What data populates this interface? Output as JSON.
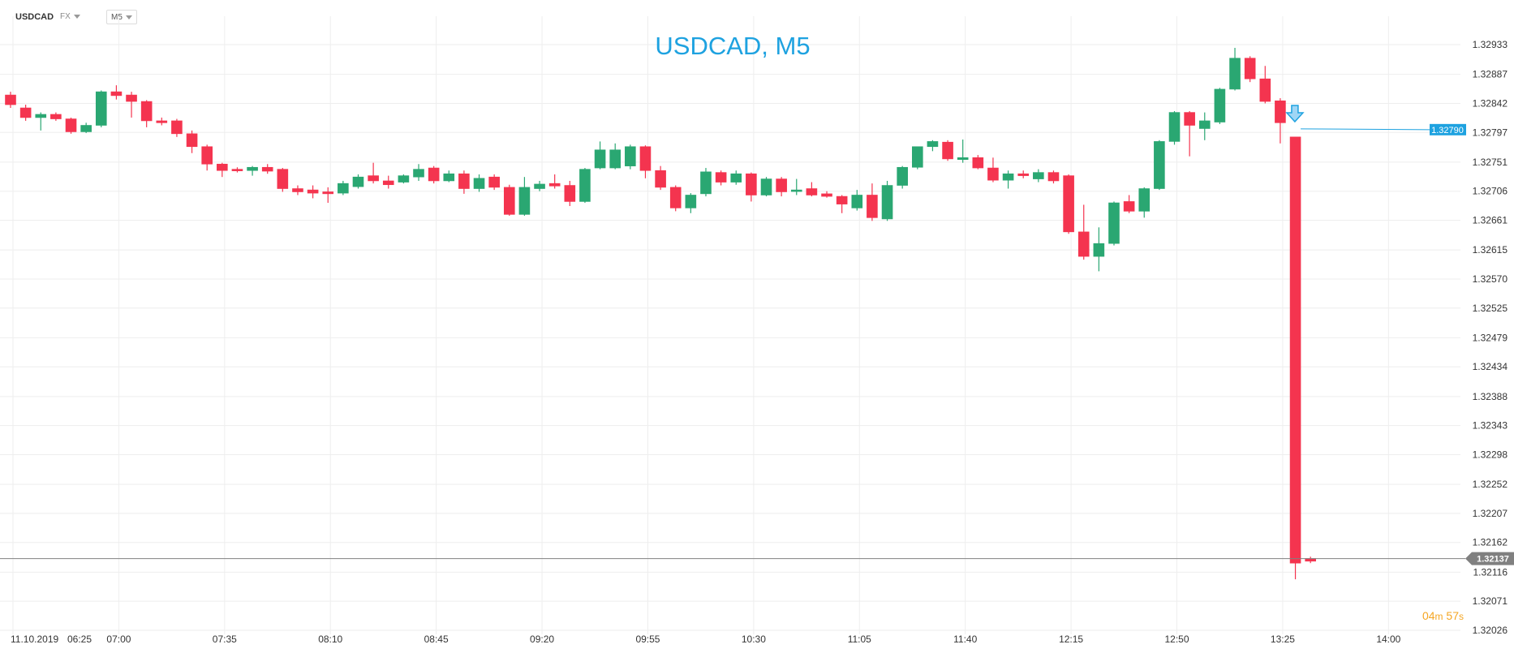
{
  "toolbar": {
    "symbol": "USDCAD",
    "market": "FX",
    "timeframe": "M5"
  },
  "timer": {
    "minutes": "04",
    "minutes_unit": "m",
    "seconds": "57",
    "seconds_unit": "s"
  },
  "colors": {
    "up": "#2aa772",
    "down": "#f4344f",
    "title": "#1ea2e0",
    "grid": "#eeeeee",
    "sell_arrow": "#1ea2e0"
  },
  "icons": {
    "sell_signal": "arrow-down-icon"
  },
  "chart_data": {
    "type": "candlestick",
    "title": "USDCAD, M5",
    "x_start_label": "11.10.2019",
    "y_ticks": [
      "1.32933",
      "1.32887",
      "1.32842",
      "1.32797",
      "1.32751",
      "1.32706",
      "1.32661",
      "1.32615",
      "1.32570",
      "1.32525",
      "1.32479",
      "1.32434",
      "1.32388",
      "1.32343",
      "1.32298",
      "1.32252",
      "1.32207",
      "1.32162",
      "1.32116",
      "1.32071",
      "1.32026"
    ],
    "x_ticks": [
      "06:25",
      "07:00",
      "07:35",
      "08:10",
      "08:45",
      "09:20",
      "09:55",
      "10:30",
      "11:05",
      "11:40",
      "12:15",
      "12:50",
      "13:25",
      "14:00"
    ],
    "ylim": [
      1.3202,
      1.3296
    ],
    "grid": true,
    "price_lines": [
      {
        "label": "1.32790",
        "value": 1.3279,
        "color": "#1ea2e0"
      },
      {
        "label": "1.32137",
        "value": 1.32137,
        "color": "#808080"
      }
    ],
    "candles": [
      {
        "t": "06:25",
        "o": 1.32855,
        "h": 1.3286,
        "l": 1.32835,
        "c": 1.3284
      },
      {
        "t": "06:30",
        "o": 1.32835,
        "h": 1.3284,
        "l": 1.32815,
        "c": 1.3282
      },
      {
        "t": "06:35",
        "o": 1.3282,
        "h": 1.32828,
        "l": 1.328,
        "c": 1.32825
      },
      {
        "t": "06:40",
        "o": 1.32825,
        "h": 1.32828,
        "l": 1.32815,
        "c": 1.32818
      },
      {
        "t": "06:45",
        "o": 1.32818,
        "h": 1.3282,
        "l": 1.32795,
        "c": 1.32798
      },
      {
        "t": "06:50",
        "o": 1.32798,
        "h": 1.32812,
        "l": 1.32796,
        "c": 1.32808
      },
      {
        "t": "06:55",
        "o": 1.32808,
        "h": 1.32862,
        "l": 1.32805,
        "c": 1.3286
      },
      {
        "t": "07:00",
        "o": 1.3286,
        "h": 1.3287,
        "l": 1.32848,
        "c": 1.32854
      },
      {
        "t": "07:05",
        "o": 1.32855,
        "h": 1.3286,
        "l": 1.3282,
        "c": 1.32845
      },
      {
        "t": "07:10",
        "o": 1.32845,
        "h": 1.32847,
        "l": 1.32805,
        "c": 1.32815
      },
      {
        "t": "07:15",
        "o": 1.32815,
        "h": 1.3282,
        "l": 1.32808,
        "c": 1.32812
      },
      {
        "t": "07:20",
        "o": 1.32815,
        "h": 1.32818,
        "l": 1.3279,
        "c": 1.32795
      },
      {
        "t": "07:25",
        "o": 1.32795,
        "h": 1.328,
        "l": 1.32765,
        "c": 1.32775
      },
      {
        "t": "07:30",
        "o": 1.32775,
        "h": 1.32778,
        "l": 1.32738,
        "c": 1.32748
      },
      {
        "t": "07:35",
        "o": 1.32748,
        "h": 1.3275,
        "l": 1.32728,
        "c": 1.32738
      },
      {
        "t": "07:40",
        "o": 1.3274,
        "h": 1.32743,
        "l": 1.32735,
        "c": 1.32738
      },
      {
        "t": "07:45",
        "o": 1.32738,
        "h": 1.32745,
        "l": 1.3273,
        "c": 1.32743
      },
      {
        "t": "07:50",
        "o": 1.32743,
        "h": 1.32748,
        "l": 1.32733,
        "c": 1.32737
      },
      {
        "t": "07:55",
        "o": 1.3274,
        "h": 1.32742,
        "l": 1.32705,
        "c": 1.3271
      },
      {
        "t": "08:00",
        "o": 1.3271,
        "h": 1.32715,
        "l": 1.327,
        "c": 1.32705
      },
      {
        "t": "08:05",
        "o": 1.32708,
        "h": 1.32715,
        "l": 1.32695,
        "c": 1.32703
      },
      {
        "t": "08:10",
        "o": 1.32705,
        "h": 1.32712,
        "l": 1.32688,
        "c": 1.32702
      },
      {
        "t": "08:15",
        "o": 1.32703,
        "h": 1.32722,
        "l": 1.327,
        "c": 1.32718
      },
      {
        "t": "08:20",
        "o": 1.32713,
        "h": 1.32732,
        "l": 1.3271,
        "c": 1.32728
      },
      {
        "t": "08:25",
        "o": 1.3273,
        "h": 1.3275,
        "l": 1.32718,
        "c": 1.32722
      },
      {
        "t": "08:30",
        "o": 1.32722,
        "h": 1.3273,
        "l": 1.3271,
        "c": 1.32716
      },
      {
        "t": "08:35",
        "o": 1.3272,
        "h": 1.32732,
        "l": 1.32718,
        "c": 1.3273
      },
      {
        "t": "08:40",
        "o": 1.32728,
        "h": 1.32748,
        "l": 1.32722,
        "c": 1.3274
      },
      {
        "t": "08:45",
        "o": 1.32742,
        "h": 1.32745,
        "l": 1.32718,
        "c": 1.32722
      },
      {
        "t": "08:50",
        "o": 1.32722,
        "h": 1.32738,
        "l": 1.3272,
        "c": 1.32733
      },
      {
        "t": "08:55",
        "o": 1.32733,
        "h": 1.32738,
        "l": 1.32702,
        "c": 1.3271
      },
      {
        "t": "09:00",
        "o": 1.3271,
        "h": 1.32732,
        "l": 1.32705,
        "c": 1.32726
      },
      {
        "t": "09:05",
        "o": 1.32728,
        "h": 1.32732,
        "l": 1.32708,
        "c": 1.32712
      },
      {
        "t": "09:10",
        "o": 1.32712,
        "h": 1.32716,
        "l": 1.32668,
        "c": 1.3267
      },
      {
        "t": "09:15",
        "o": 1.3267,
        "h": 1.32728,
        "l": 1.32668,
        "c": 1.32712
      },
      {
        "t": "09:20",
        "o": 1.3271,
        "h": 1.32722,
        "l": 1.32706,
        "c": 1.32717
      },
      {
        "t": "09:25",
        "o": 1.32718,
        "h": 1.32732,
        "l": 1.3271,
        "c": 1.32714
      },
      {
        "t": "09:30",
        "o": 1.32715,
        "h": 1.32722,
        "l": 1.32683,
        "c": 1.3269
      },
      {
        "t": "09:35",
        "o": 1.3269,
        "h": 1.32742,
        "l": 1.32688,
        "c": 1.3274
      },
      {
        "t": "09:40",
        "o": 1.32742,
        "h": 1.32783,
        "l": 1.3274,
        "c": 1.3277
      },
      {
        "t": "09:45",
        "o": 1.32742,
        "h": 1.3278,
        "l": 1.3274,
        "c": 1.3277
      },
      {
        "t": "09:50",
        "o": 1.32745,
        "h": 1.32778,
        "l": 1.3274,
        "c": 1.32775
      },
      {
        "t": "09:55",
        "o": 1.32775,
        "h": 1.32777,
        "l": 1.32726,
        "c": 1.32738
      },
      {
        "t": "10:00",
        "o": 1.32738,
        "h": 1.32745,
        "l": 1.32708,
        "c": 1.32712
      },
      {
        "t": "10:05",
        "o": 1.32712,
        "h": 1.32715,
        "l": 1.32675,
        "c": 1.3268
      },
      {
        "t": "10:10",
        "o": 1.3268,
        "h": 1.32703,
        "l": 1.32672,
        "c": 1.327
      },
      {
        "t": "10:15",
        "o": 1.32702,
        "h": 1.32742,
        "l": 1.32698,
        "c": 1.32736
      },
      {
        "t": "10:20",
        "o": 1.32735,
        "h": 1.32738,
        "l": 1.32715,
        "c": 1.3272
      },
      {
        "t": "10:25",
        "o": 1.3272,
        "h": 1.32738,
        "l": 1.32716,
        "c": 1.32733
      },
      {
        "t": "10:30",
        "o": 1.32733,
        "h": 1.32735,
        "l": 1.3269,
        "c": 1.327
      },
      {
        "t": "10:35",
        "o": 1.327,
        "h": 1.32728,
        "l": 1.32698,
        "c": 1.32725
      },
      {
        "t": "10:40",
        "o": 1.32725,
        "h": 1.32728,
        "l": 1.32698,
        "c": 1.32705
      },
      {
        "t": "10:45",
        "o": 1.32706,
        "h": 1.32725,
        "l": 1.327,
        "c": 1.32708
      },
      {
        "t": "10:50",
        "o": 1.3271,
        "h": 1.3272,
        "l": 1.32698,
        "c": 1.327
      },
      {
        "t": "10:55",
        "o": 1.32702,
        "h": 1.32706,
        "l": 1.32696,
        "c": 1.32698
      },
      {
        "t": "11:00",
        "o": 1.32698,
        "h": 1.327,
        "l": 1.32672,
        "c": 1.32686
      },
      {
        "t": "11:05",
        "o": 1.3268,
        "h": 1.32708,
        "l": 1.32676,
        "c": 1.327
      },
      {
        "t": "11:10",
        "o": 1.327,
        "h": 1.32718,
        "l": 1.3266,
        "c": 1.32665
      },
      {
        "t": "11:15",
        "o": 1.32663,
        "h": 1.32722,
        "l": 1.3266,
        "c": 1.32715
      },
      {
        "t": "11:20",
        "o": 1.32715,
        "h": 1.32745,
        "l": 1.3271,
        "c": 1.32743
      },
      {
        "t": "11:25",
        "o": 1.32743,
        "h": 1.32775,
        "l": 1.3274,
        "c": 1.32775
      },
      {
        "t": "11:30",
        "o": 1.32775,
        "h": 1.32785,
        "l": 1.32768,
        "c": 1.32783
      },
      {
        "t": "11:35",
        "o": 1.32782,
        "h": 1.32785,
        "l": 1.32753,
        "c": 1.32756
      },
      {
        "t": "11:40",
        "o": 1.32755,
        "h": 1.32786,
        "l": 1.3275,
        "c": 1.32758
      },
      {
        "t": "11:45",
        "o": 1.32758,
        "h": 1.32762,
        "l": 1.3274,
        "c": 1.32742
      },
      {
        "t": "11:50",
        "o": 1.32742,
        "h": 1.32758,
        "l": 1.3272,
        "c": 1.32723
      },
      {
        "t": "11:55",
        "o": 1.32723,
        "h": 1.32738,
        "l": 1.3271,
        "c": 1.32733
      },
      {
        "t": "12:00",
        "o": 1.32733,
        "h": 1.32738,
        "l": 1.32726,
        "c": 1.3273
      },
      {
        "t": "12:05",
        "o": 1.32725,
        "h": 1.3274,
        "l": 1.3272,
        "c": 1.32735
      },
      {
        "t": "12:10",
        "o": 1.32735,
        "h": 1.32738,
        "l": 1.32718,
        "c": 1.32722
      },
      {
        "t": "12:15",
        "o": 1.3273,
        "h": 1.32732,
        "l": 1.3264,
        "c": 1.32643
      },
      {
        "t": "12:20",
        "o": 1.32643,
        "h": 1.32685,
        "l": 1.326,
        "c": 1.32605
      },
      {
        "t": "12:25",
        "o": 1.32605,
        "h": 1.3265,
        "l": 1.32582,
        "c": 1.32625
      },
      {
        "t": "12:30",
        "o": 1.32625,
        "h": 1.3269,
        "l": 1.32622,
        "c": 1.32688
      },
      {
        "t": "12:35",
        "o": 1.3269,
        "h": 1.327,
        "l": 1.32672,
        "c": 1.32675
      },
      {
        "t": "12:40",
        "o": 1.32675,
        "h": 1.32712,
        "l": 1.32665,
        "c": 1.3271
      },
      {
        "t": "12:45",
        "o": 1.3271,
        "h": 1.32785,
        "l": 1.32708,
        "c": 1.32783
      },
      {
        "t": "12:50",
        "o": 1.32783,
        "h": 1.3283,
        "l": 1.32778,
        "c": 1.32828
      },
      {
        "t": "12:55",
        "o": 1.32828,
        "h": 1.3283,
        "l": 1.3276,
        "c": 1.32808
      },
      {
        "t": "13:00",
        "o": 1.32803,
        "h": 1.32828,
        "l": 1.32785,
        "c": 1.32815
      },
      {
        "t": "13:05",
        "o": 1.32813,
        "h": 1.32866,
        "l": 1.3281,
        "c": 1.32864
      },
      {
        "t": "13:10",
        "o": 1.32864,
        "h": 1.32928,
        "l": 1.32862,
        "c": 1.32912
      },
      {
        "t": "13:15",
        "o": 1.32912,
        "h": 1.32915,
        "l": 1.32875,
        "c": 1.3288
      },
      {
        "t": "13:20",
        "o": 1.3288,
        "h": 1.329,
        "l": 1.32842,
        "c": 1.32845
      },
      {
        "t": "13:25",
        "o": 1.32846,
        "h": 1.3285,
        "l": 1.3278,
        "c": 1.32812
      },
      {
        "t": "13:30",
        "o": 1.3279,
        "h": 1.3279,
        "l": 1.32105,
        "c": 1.3213
      },
      {
        "t": "13:35",
        "o": 1.32137,
        "h": 1.3214,
        "l": 1.3213,
        "c": 1.32133
      }
    ]
  }
}
